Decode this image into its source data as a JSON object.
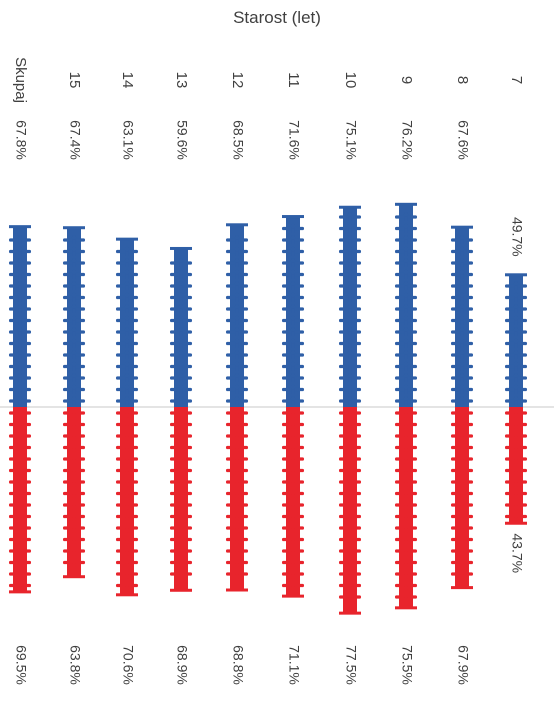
{
  "chart_data": {
    "type": "bar",
    "orientation": "rotated-90",
    "axis_title": "Starost (let)",
    "categories": [
      "7",
      "8",
      "9",
      "10",
      "11",
      "12",
      "13",
      "14",
      "15",
      "Skupaj"
    ],
    "series": [
      {
        "color": "#2f5fa7",
        "values": [
          49.7,
          67.6,
          76.2,
          75.1,
          71.6,
          68.5,
          59.6,
          63.1,
          67.4,
          67.8
        ],
        "labels": [
          "49.7%",
          "67.6%",
          "76.2%",
          "75.1%",
          "71.6%",
          "68.5%",
          "59.6%",
          "63.1%",
          "67.4%",
          "67.8%"
        ]
      },
      {
        "color": "#e8242c",
        "values": [
          43.7,
          67.9,
          75.5,
          77.5,
          71.1,
          68.8,
          68.9,
          70.6,
          63.8,
          69.5
        ],
        "labels": [
          "43.7%",
          "67.9%",
          "75.5%",
          "77.5%",
          "71.1%",
          "68.8%",
          "68.9%",
          "70.6%",
          "63.8%",
          "69.5%"
        ]
      }
    ],
    "ylim": [
      0,
      100
    ],
    "legend": "none",
    "grid": false
  }
}
